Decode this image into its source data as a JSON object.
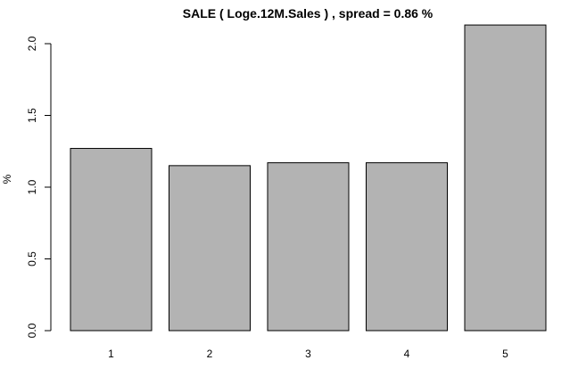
{
  "chart_data": {
    "type": "bar",
    "title": "SALE ( Loge.12M.Sales ) , spread = 0.86 %",
    "xlabel": "",
    "ylabel": "%",
    "categories": [
      "1",
      "2",
      "3",
      "4",
      "5"
    ],
    "values": [
      1.27,
      1.15,
      1.17,
      1.17,
      2.13
    ],
    "ylim": [
      0,
      2.0
    ],
    "yticks": [
      "0.0",
      "0.5",
      "1.0",
      "1.5",
      "2.0"
    ],
    "grid": false,
    "colors": {
      "bar_fill": "#b3b3b3",
      "bar_stroke": "#000000"
    }
  }
}
